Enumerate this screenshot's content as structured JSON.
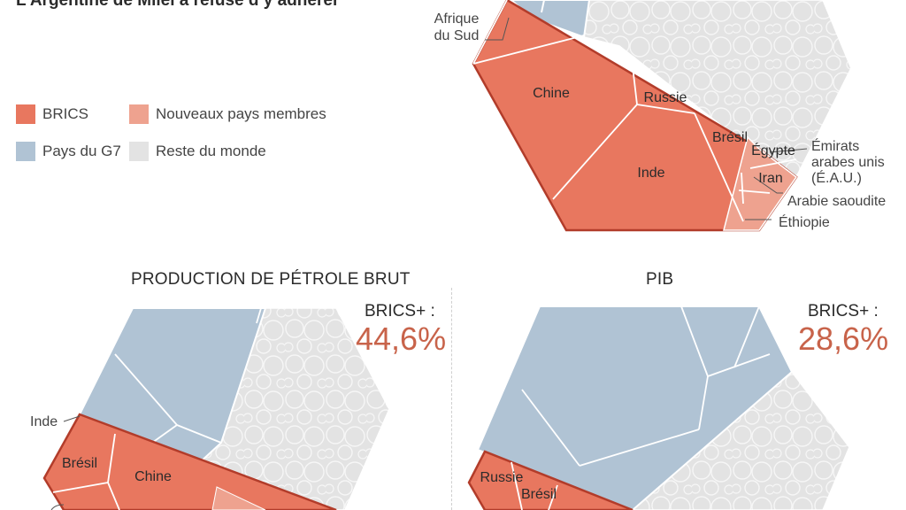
{
  "headline": "L’Argentine de Milei a refusé d’y adhérer",
  "legend": [
    {
      "label": "BRICS",
      "color": "#e8775f"
    },
    {
      "label": "Nouveaux pays membres",
      "color": "#eea28f"
    },
    {
      "label": "Pays du G7",
      "color": "#b0c3d4"
    },
    {
      "label": "Reste du monde",
      "color": "#e3e3e3"
    }
  ],
  "colors": {
    "brics": "#e8775f",
    "new_members": "#eea28f",
    "g7": "#b0c3d4",
    "rest": "#e3e3e3",
    "outline": "#b23c2a",
    "accent": "#c8634a"
  },
  "chart_data": [
    {
      "type": "voronoi-treemap",
      "title": "",
      "cell_labels": [
        "Chine",
        "Inde",
        "Russie",
        "Brésil",
        "Égypte",
        "Iran"
      ],
      "annotations": [
        "Afrique du Sud",
        "Émirats arabes unis (É.A.U.)",
        "Arabie saoudite",
        "Éthiopie"
      ]
    },
    {
      "type": "voronoi-treemap",
      "title": "PRODUCTION DE PÉTROLE BRUT",
      "stat_label": "BRICS+ :",
      "stat_value": "44,6%",
      "cell_labels": [
        "Brésil",
        "Chine"
      ],
      "annotations": [
        "Inde"
      ]
    },
    {
      "type": "voronoi-treemap",
      "title": "PIB",
      "stat_label": "BRICS+ :",
      "stat_value": "28,6%",
      "cell_labels": [
        "Russie",
        "Brésil"
      ],
      "annotations": []
    }
  ]
}
